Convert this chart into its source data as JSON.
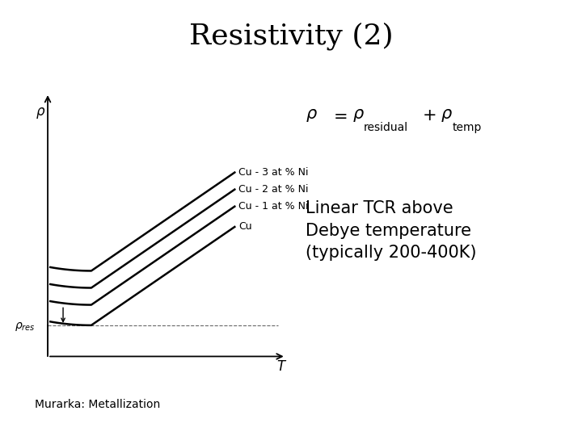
{
  "title": "Resistivity (2)",
  "title_fontsize": 26,
  "title_fontweight": "normal",
  "title_fontfamily": "serif",
  "background_color": "#ffffff",
  "linear_text": "Linear TCR above\nDebye temperature\n(typically 200-400K)",
  "linear_fontsize": 15,
  "footer_text": "Murarka: Metallization",
  "footer_fontsize": 10,
  "curve_labels": [
    "Cu - 3 at % Ni",
    "Cu - 2 at % Ni",
    "Cu - 1 at % Ni",
    "Cu"
  ],
  "curve_offsets": [
    0.32,
    0.22,
    0.12,
    0.0
  ],
  "curve_color": "#000000",
  "curve_linewidth": 1.8,
  "rho_res_label": "ρres",
  "xlabel_label": "T",
  "ylabel_label": "ρ"
}
